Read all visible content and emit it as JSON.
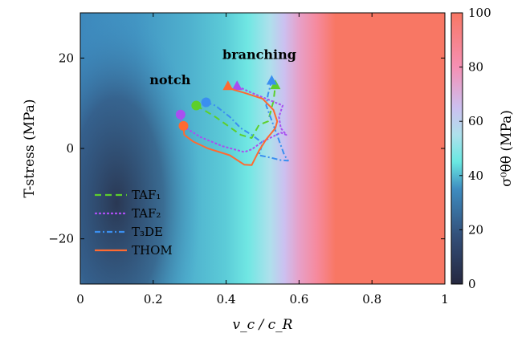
{
  "chart_data": {
    "type": "line",
    "xlabel": "v_c / c_R",
    "ylabel": "T-stress (MPa)",
    "xlim": [
      0,
      1
    ],
    "ylim": [
      -30,
      30
    ],
    "xticks": [
      0,
      0.2,
      0.4,
      0.6,
      0.8,
      1
    ],
    "xtick_labels": [
      "0",
      "0.2",
      "0.4",
      "0.6",
      "0.8",
      "1"
    ],
    "yticks": [
      -20,
      0,
      20
    ],
    "ytick_labels": [
      "−20",
      "0",
      "20"
    ],
    "colorbar": {
      "label": "σ⁰θθ (MPa)",
      "range": [
        0,
        100
      ],
      "ticks": [
        0,
        20,
        40,
        60,
        80,
        100
      ],
      "tick_labels": [
        "0",
        "20",
        "40",
        "60",
        "80",
        "100"
      ],
      "colormap": [
        {
          "v": 0,
          "color": "#262840"
        },
        {
          "v": 18,
          "color": "#33507a"
        },
        {
          "v": 35,
          "color": "#3e8cc0"
        },
        {
          "v": 45,
          "color": "#69e8e2"
        },
        {
          "v": 55,
          "color": "#aee0ec"
        },
        {
          "v": 65,
          "color": "#ccc0f0"
        },
        {
          "v": 80,
          "color": "#f590b4"
        },
        {
          "v": 100,
          "color": "#f87764"
        }
      ]
    },
    "background_field": {
      "description_free": true,
      "x_profile": [
        {
          "x": 0.0,
          "v": 34
        },
        {
          "x": 0.15,
          "v": 36
        },
        {
          "x": 0.3,
          "v": 39
        },
        {
          "x": 0.4,
          "v": 42
        },
        {
          "x": 0.46,
          "v": 46
        },
        {
          "x": 0.52,
          "v": 55
        },
        {
          "x": 0.56,
          "v": 65
        },
        {
          "x": 0.6,
          "v": 75
        },
        {
          "x": 0.65,
          "v": 86
        },
        {
          "x": 0.7,
          "v": 100
        },
        {
          "x": 1.0,
          "v": 100
        }
      ],
      "dark_region_left": {
        "x_end": 0.2,
        "y_start": 5,
        "y_end": -28,
        "v": 12
      }
    },
    "annotations": [
      {
        "text": "notch",
        "x": 0.19,
        "y": 14.2
      },
      {
        "text": "branching",
        "x": 0.39,
        "y": 19.8
      }
    ],
    "legend_position": "bottom-left",
    "series": [
      {
        "name": "TAF₁",
        "color": "#5dcf2b",
        "dash": "8,5",
        "points": [
          [
            0.318,
            9.5
          ],
          [
            0.37,
            7.0
          ],
          [
            0.44,
            3.0
          ],
          [
            0.47,
            2.3
          ],
          [
            0.49,
            5.2
          ],
          [
            0.515,
            6.0
          ],
          [
            0.53,
            10.5
          ],
          [
            0.535,
            14.0
          ]
        ],
        "start_marker": "circle",
        "end_marker": "triangle"
      },
      {
        "name": "TAF₂",
        "color": "#a94ff0",
        "dash": "3,2",
        "points": [
          [
            0.275,
            7.5
          ],
          [
            0.28,
            5.0
          ],
          [
            0.33,
            2.5
          ],
          [
            0.39,
            0.5
          ],
          [
            0.45,
            -0.8
          ],
          [
            0.47,
            -0.2
          ],
          [
            0.5,
            1.5
          ],
          [
            0.55,
            3.5
          ],
          [
            0.565,
            3.0
          ],
          [
            0.55,
            4.5
          ],
          [
            0.545,
            7.0
          ],
          [
            0.555,
            9.5
          ],
          [
            0.51,
            11.0
          ],
          [
            0.47,
            12.3
          ],
          [
            0.43,
            13.8
          ]
        ],
        "start_marker": "circle",
        "end_marker": "triangle"
      },
      {
        "name": "T₃DE",
        "color": "#3a8ff0",
        "dash": "7,3,2,3",
        "points": [
          [
            0.345,
            10.2
          ],
          [
            0.37,
            9.5
          ],
          [
            0.41,
            7.0
          ],
          [
            0.44,
            4.5
          ],
          [
            0.47,
            3.0
          ],
          [
            0.5,
            1.2
          ],
          [
            0.49,
            -1.5
          ],
          [
            0.52,
            -2.0
          ],
          [
            0.55,
            -2.6
          ],
          [
            0.57,
            -2.7
          ],
          [
            0.56,
            -1.5
          ],
          [
            0.535,
            4.0
          ],
          [
            0.51,
            9.5
          ],
          [
            0.515,
            12.0
          ],
          [
            0.525,
            15.0
          ]
        ],
        "start_marker": "circle",
        "end_marker": "triangle"
      },
      {
        "name": "THOM",
        "color": "#ff6a30",
        "dash": "",
        "points": [
          [
            0.283,
            5.0
          ],
          [
            0.285,
            3.0
          ],
          [
            0.31,
            1.5
          ],
          [
            0.35,
            0.0
          ],
          [
            0.41,
            -1.5
          ],
          [
            0.45,
            -3.6
          ],
          [
            0.47,
            -3.7
          ],
          [
            0.49,
            -0.5
          ],
          [
            0.51,
            2.0
          ],
          [
            0.535,
            4.5
          ],
          [
            0.54,
            6.0
          ],
          [
            0.53,
            8.5
          ],
          [
            0.5,
            11.0
          ],
          [
            0.45,
            12.3
          ],
          [
            0.42,
            13.0
          ],
          [
            0.405,
            13.8
          ]
        ],
        "start_marker": "circle",
        "end_marker": "triangle"
      }
    ]
  }
}
